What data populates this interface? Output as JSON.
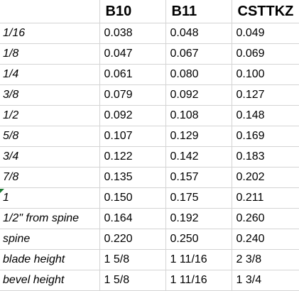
{
  "table": {
    "columns": [
      "B10",
      "B11",
      "CSTTKZ"
    ],
    "rows": [
      {
        "label": "1/16",
        "values": [
          "0.038",
          "0.048",
          "0.049"
        ]
      },
      {
        "label": "1/8",
        "values": [
          "0.047",
          "0.067",
          "0.069"
        ]
      },
      {
        "label": "1/4",
        "values": [
          "0.061",
          "0.080",
          "0.100"
        ]
      },
      {
        "label": "3/8",
        "values": [
          "0.079",
          "0.092",
          "0.127"
        ]
      },
      {
        "label": "1/2",
        "values": [
          "0.092",
          "0.108",
          "0.148"
        ]
      },
      {
        "label": "5/8",
        "values": [
          "0.107",
          "0.129",
          "0.169"
        ]
      },
      {
        "label": "3/4",
        "values": [
          "0.122",
          "0.142",
          "0.183"
        ]
      },
      {
        "label": "7/8",
        "values": [
          "0.135",
          "0.157",
          "0.202"
        ]
      },
      {
        "label": "1",
        "values": [
          "0.150",
          "0.175",
          "0.211"
        ]
      },
      {
        "label": "1/2\" from spine",
        "values": [
          "0.164",
          "0.192",
          "0.260"
        ]
      },
      {
        "label": "spine",
        "values": [
          "0.220",
          "0.250",
          "0.240"
        ]
      },
      {
        "label": "blade height",
        "values": [
          "1 5/8",
          "1 11/16",
          "2 3/8"
        ]
      },
      {
        "label": "bevel height",
        "values": [
          "1 5/8",
          "1 11/16",
          "1 3/4"
        ]
      }
    ]
  }
}
